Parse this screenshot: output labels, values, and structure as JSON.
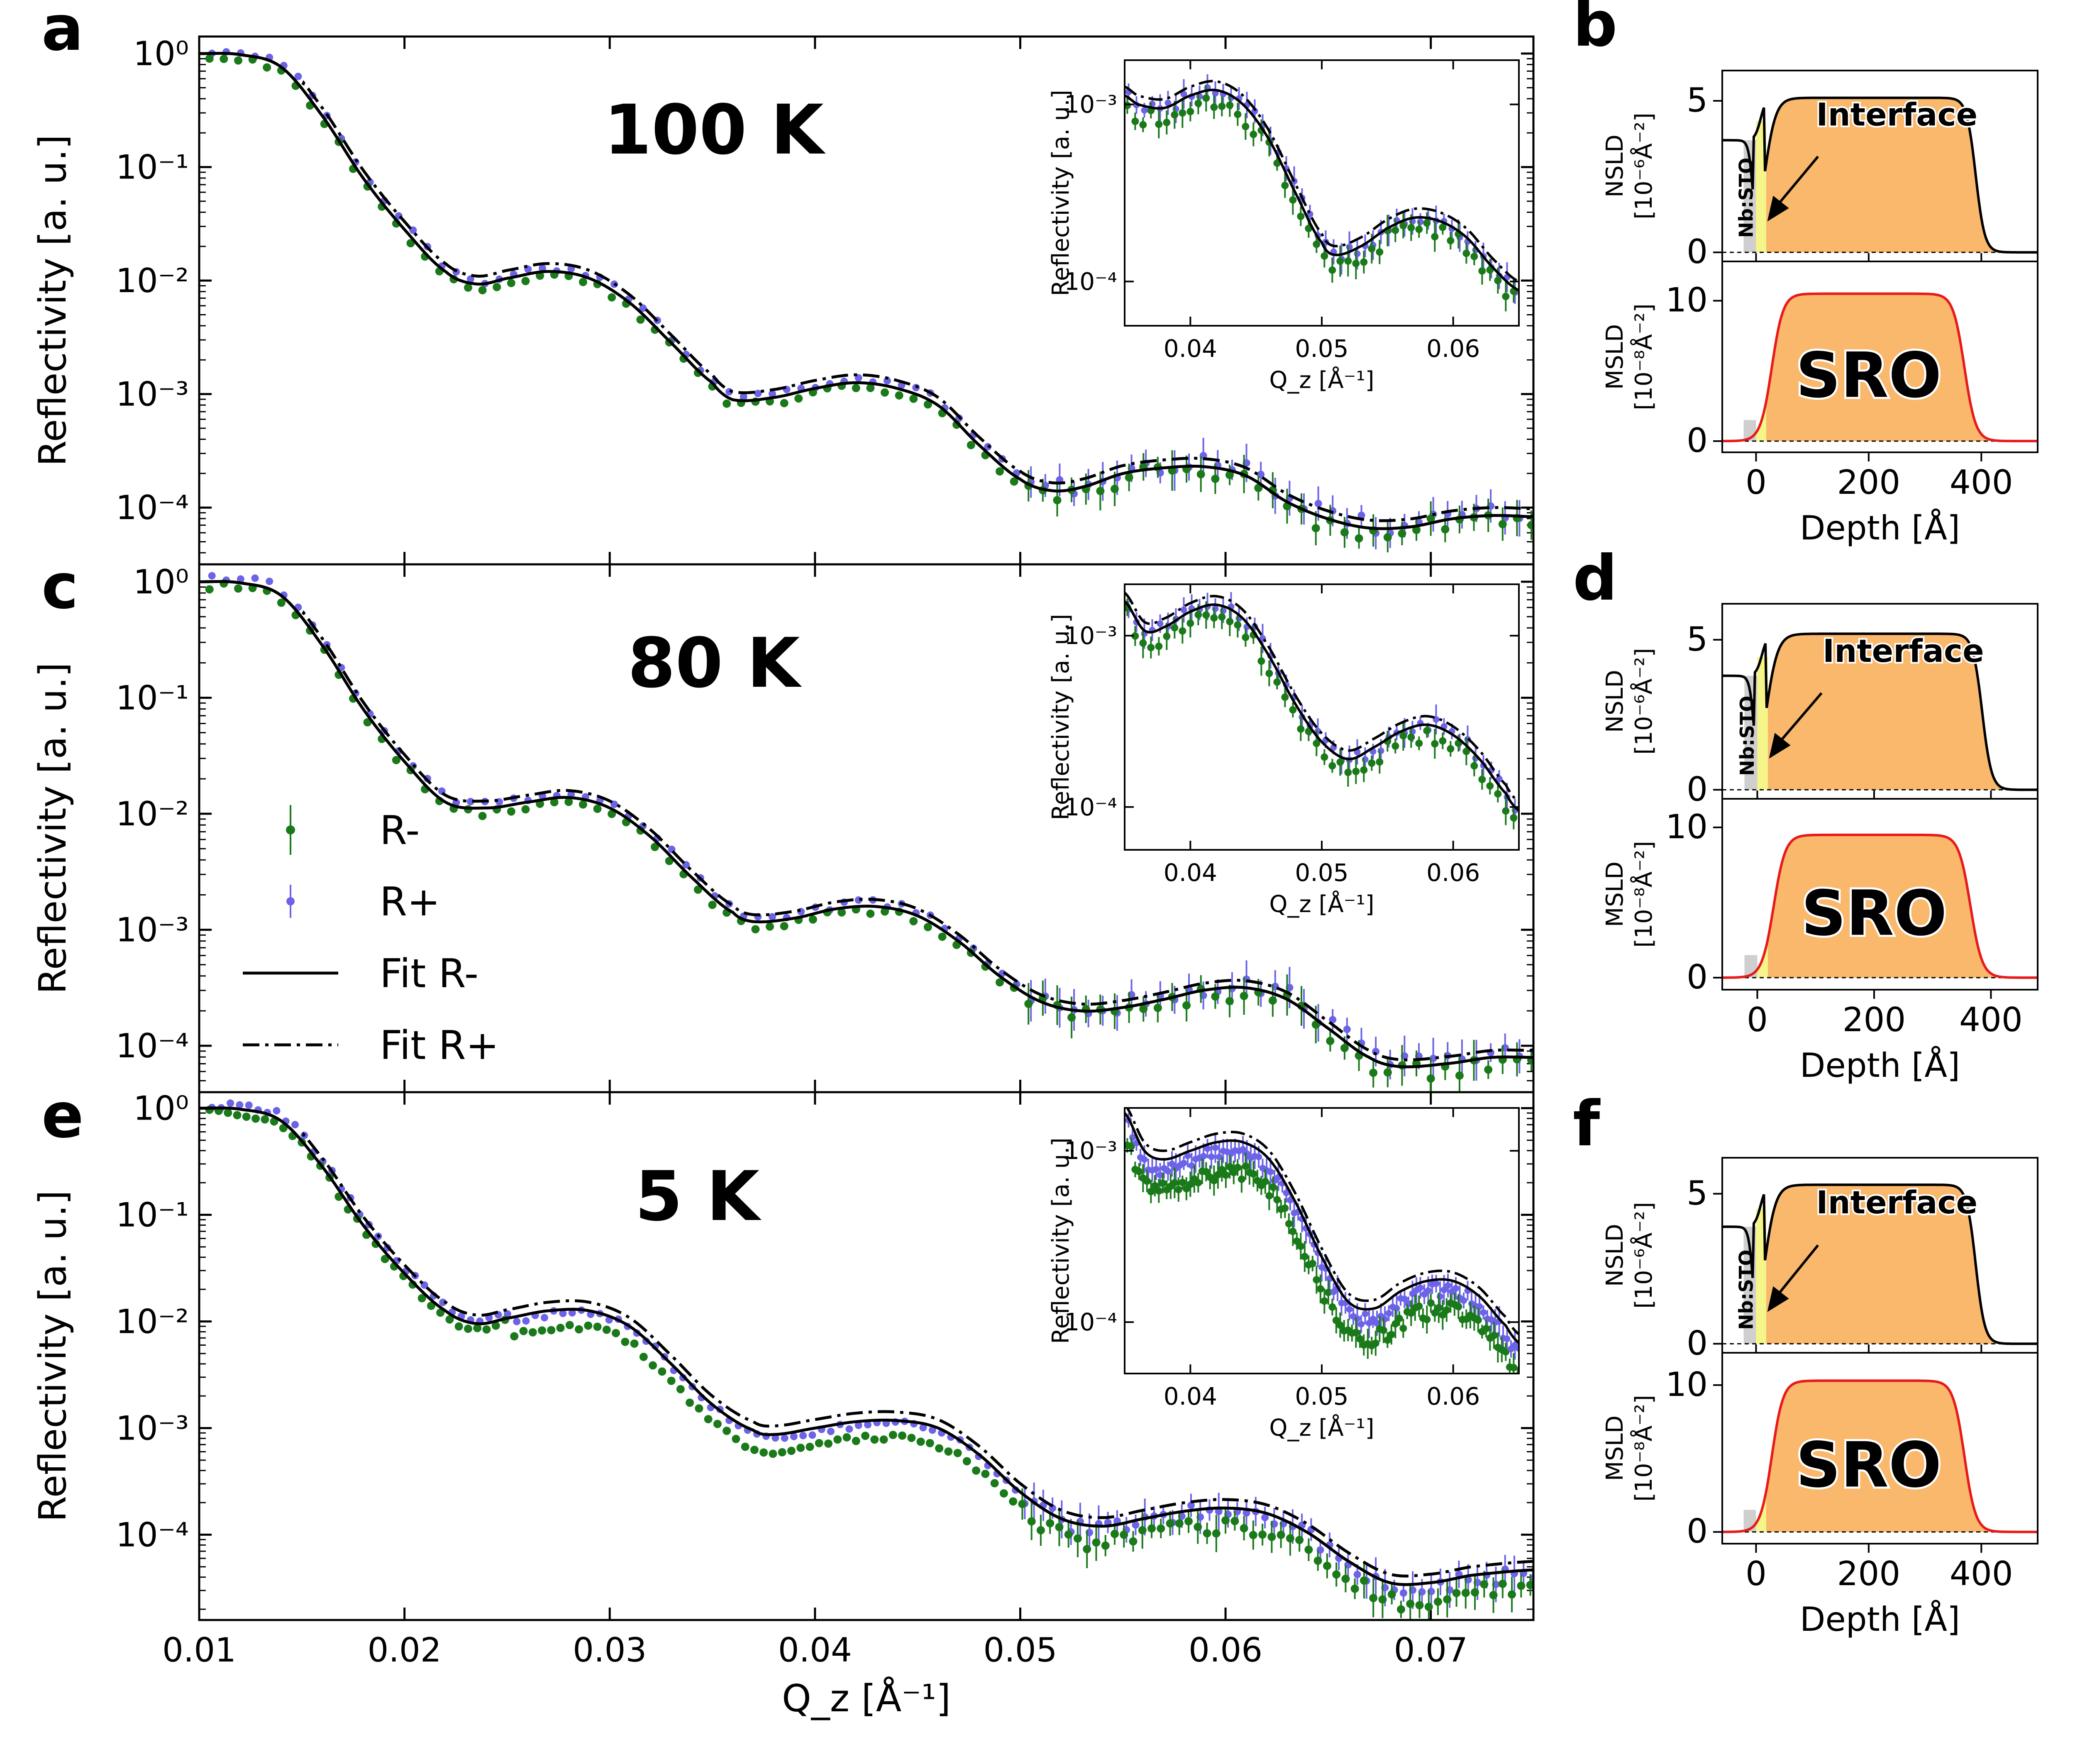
{
  "figure": {
    "colors": {
      "r_minus": "#1a7a1a",
      "r_plus": "#6c63e8",
      "fit": "#000000",
      "nsld_line": "#000000",
      "msld_line": "#e81a1a",
      "sro_fill": "#f9b86b",
      "interface_fill": "#f5f58a",
      "substrate_fill": "#cfcfcf"
    }
  },
  "legend": {
    "entries": [
      {
        "label": "R-",
        "style": "green-errorbar-dot"
      },
      {
        "label": "R+",
        "style": "blue-errorbar-x"
      },
      {
        "label": "Fit R-",
        "style": "solid-black"
      },
      {
        "label": "Fit R+",
        "style": "dashdot-black"
      }
    ]
  },
  "chart_data": [
    {
      "panel": "a",
      "type": "line",
      "temperature": "100 K",
      "xlabel": "Q_z [Å⁻¹]",
      "ylabel": "Reflectivity [a. u.]",
      "xlim": [
        0.01,
        0.075
      ],
      "ylim_log10": [
        -4.5,
        0.15
      ],
      "yscale": "log",
      "yticks": [
        "10⁰",
        "10⁻¹",
        "10⁻²",
        "10⁻³",
        "10⁻⁴"
      ],
      "xticks": [
        "0.01",
        "0.02",
        "0.03",
        "0.04",
        "0.05",
        "0.06",
        "0.07"
      ],
      "fit_knots_log10": [
        [
          0.01,
          0.0
        ],
        [
          0.012,
          -0.01
        ],
        [
          0.014,
          -0.12
        ],
        [
          0.016,
          -0.55
        ],
        [
          0.018,
          -1.1
        ],
        [
          0.02,
          -1.55
        ],
        [
          0.022,
          -1.92
        ],
        [
          0.0235,
          -2.03
        ],
        [
          0.025,
          -1.98
        ],
        [
          0.027,
          -1.92
        ],
        [
          0.029,
          -1.98
        ],
        [
          0.031,
          -2.2
        ],
        [
          0.033,
          -2.55
        ],
        [
          0.035,
          -2.9
        ],
        [
          0.036,
          -3.05
        ],
        [
          0.038,
          -3.03
        ],
        [
          0.04,
          -2.95
        ],
        [
          0.042,
          -2.9
        ],
        [
          0.044,
          -2.95
        ],
        [
          0.046,
          -3.1
        ],
        [
          0.048,
          -3.45
        ],
        [
          0.05,
          -3.75
        ],
        [
          0.0515,
          -3.85
        ],
        [
          0.053,
          -3.82
        ],
        [
          0.055,
          -3.7
        ],
        [
          0.057,
          -3.65
        ],
        [
          0.059,
          -3.64
        ],
        [
          0.061,
          -3.72
        ],
        [
          0.063,
          -3.95
        ],
        [
          0.065,
          -4.1
        ],
        [
          0.067,
          -4.18
        ],
        [
          0.069,
          -4.17
        ],
        [
          0.071,
          -4.1
        ],
        [
          0.073,
          -4.07
        ],
        [
          0.075,
          -4.08
        ]
      ],
      "fit_offset_r_plus": 0.07,
      "inset": {
        "xlim": [
          0.035,
          0.065
        ],
        "ylim_log10": [
          -4.25,
          -2.75
        ],
        "xlabel": "Q_z [Å⁻¹]",
        "ylabel": "Reflectivity [a. u.]",
        "xticks": [
          "0.04",
          "0.05",
          "0.06"
        ],
        "yticks": [
          "10⁻³",
          "10⁻⁴"
        ],
        "fit_knots_log10": [
          [
            0.035,
            -2.95
          ],
          [
            0.036,
            -3.0
          ],
          [
            0.038,
            -3.02
          ],
          [
            0.04,
            -2.95
          ],
          [
            0.042,
            -2.92
          ],
          [
            0.044,
            -3.0
          ],
          [
            0.046,
            -3.2
          ],
          [
            0.048,
            -3.5
          ],
          [
            0.05,
            -3.78
          ],
          [
            0.051,
            -3.85
          ],
          [
            0.053,
            -3.8
          ],
          [
            0.055,
            -3.7
          ],
          [
            0.057,
            -3.64
          ],
          [
            0.059,
            -3.66
          ],
          [
            0.061,
            -3.75
          ],
          [
            0.063,
            -3.92
          ],
          [
            0.065,
            -4.05
          ]
        ]
      }
    },
    {
      "panel": "c",
      "type": "line",
      "temperature": "80 K",
      "xlabel": "Q_z [Å⁻¹]",
      "ylabel": "Reflectivity [a. u.]",
      "xlim": [
        0.01,
        0.075
      ],
      "ylim_log10": [
        -4.4,
        0.15
      ],
      "yscale": "log",
      "yticks": [
        "10⁰",
        "10⁻¹",
        "10⁻²",
        "10⁻³",
        "10⁻⁴"
      ],
      "xticks": [
        "0.01",
        "0.02",
        "0.03",
        "0.04",
        "0.05",
        "0.06",
        "0.07"
      ],
      "fit_knots_log10": [
        [
          0.01,
          0.0
        ],
        [
          0.012,
          -0.01
        ],
        [
          0.014,
          -0.12
        ],
        [
          0.016,
          -0.55
        ],
        [
          0.018,
          -1.1
        ],
        [
          0.02,
          -1.55
        ],
        [
          0.022,
          -1.9
        ],
        [
          0.024,
          -1.95
        ],
        [
          0.026,
          -1.9
        ],
        [
          0.028,
          -1.86
        ],
        [
          0.03,
          -1.95
        ],
        [
          0.032,
          -2.2
        ],
        [
          0.034,
          -2.55
        ],
        [
          0.036,
          -2.85
        ],
        [
          0.037,
          -2.93
        ],
        [
          0.039,
          -2.9
        ],
        [
          0.041,
          -2.82
        ],
        [
          0.043,
          -2.8
        ],
        [
          0.045,
          -2.88
        ],
        [
          0.047,
          -3.1
        ],
        [
          0.049,
          -3.4
        ],
        [
          0.051,
          -3.62
        ],
        [
          0.053,
          -3.7
        ],
        [
          0.055,
          -3.67
        ],
        [
          0.057,
          -3.6
        ],
        [
          0.059,
          -3.52
        ],
        [
          0.061,
          -3.5
        ],
        [
          0.063,
          -3.6
        ],
        [
          0.065,
          -3.85
        ],
        [
          0.067,
          -4.1
        ],
        [
          0.0685,
          -4.18
        ],
        [
          0.071,
          -4.15
        ],
        [
          0.073,
          -4.1
        ],
        [
          0.075,
          -4.1
        ]
      ],
      "fit_offset_r_plus": 0.06,
      "inset": {
        "xlim": [
          0.035,
          0.065
        ],
        "ylim_log10": [
          -4.25,
          -2.7
        ],
        "xlabel": "Q_z [Å⁻¹]",
        "ylabel": "Reflectivity [a. u.]",
        "xticks": [
          "0.04",
          "0.05",
          "0.06"
        ],
        "yticks": [
          "10⁻³",
          "10⁻⁴"
        ],
        "fit_knots_log10": [
          [
            0.035,
            -2.8
          ],
          [
            0.0365,
            -2.97
          ],
          [
            0.038,
            -2.95
          ],
          [
            0.04,
            -2.86
          ],
          [
            0.042,
            -2.82
          ],
          [
            0.044,
            -2.9
          ],
          [
            0.046,
            -3.12
          ],
          [
            0.048,
            -3.4
          ],
          [
            0.05,
            -3.62
          ],
          [
            0.052,
            -3.72
          ],
          [
            0.054,
            -3.65
          ],
          [
            0.056,
            -3.56
          ],
          [
            0.058,
            -3.52
          ],
          [
            0.06,
            -3.58
          ],
          [
            0.062,
            -3.72
          ],
          [
            0.064,
            -3.92
          ],
          [
            0.065,
            -4.02
          ]
        ]
      }
    },
    {
      "panel": "e",
      "type": "line",
      "temperature": "5 K",
      "xlabel": "Q_z [Å⁻¹]",
      "ylabel": "Reflectivity [a. u.]",
      "xlim": [
        0.01,
        0.075
      ],
      "ylim_log10": [
        -4.8,
        0.15
      ],
      "yscale": "log",
      "yticks": [
        "10⁰",
        "10⁻¹",
        "10⁻²",
        "10⁻³",
        "10⁻⁴"
      ],
      "xticks": [
        "0.01",
        "0.02",
        "0.03",
        "0.04",
        "0.05",
        "0.06",
        "0.07"
      ],
      "fit_knots_log10": [
        [
          0.01,
          0.0
        ],
        [
          0.012,
          -0.01
        ],
        [
          0.014,
          -0.12
        ],
        [
          0.016,
          -0.55
        ],
        [
          0.018,
          -1.1
        ],
        [
          0.02,
          -1.55
        ],
        [
          0.022,
          -1.9
        ],
        [
          0.0235,
          -2.02
        ],
        [
          0.025,
          -1.97
        ],
        [
          0.027,
          -1.9
        ],
        [
          0.029,
          -1.9
        ],
        [
          0.031,
          -2.05
        ],
        [
          0.033,
          -2.4
        ],
        [
          0.035,
          -2.78
        ],
        [
          0.037,
          -3.02
        ],
        [
          0.038,
          -3.06
        ],
        [
          0.04,
          -3.0
        ],
        [
          0.042,
          -2.94
        ],
        [
          0.044,
          -2.93
        ],
        [
          0.046,
          -3.0
        ],
        [
          0.048,
          -3.25
        ],
        [
          0.05,
          -3.6
        ],
        [
          0.052,
          -3.85
        ],
        [
          0.054,
          -3.92
        ],
        [
          0.056,
          -3.85
        ],
        [
          0.058,
          -3.78
        ],
        [
          0.06,
          -3.75
        ],
        [
          0.062,
          -3.8
        ],
        [
          0.064,
          -3.98
        ],
        [
          0.066,
          -4.25
        ],
        [
          0.068,
          -4.45
        ],
        [
          0.07,
          -4.45
        ],
        [
          0.072,
          -4.38
        ],
        [
          0.075,
          -4.33
        ]
      ],
      "fit_offset_r_plus": 0.08,
      "inset": {
        "xlim": [
          0.035,
          0.065
        ],
        "ylim_log10": [
          -4.3,
          -2.75
        ],
        "xlabel": "Q_z [Å⁻¹]",
        "ylabel": "Reflectivity [a. u.]",
        "xticks": [
          "0.04",
          "0.05",
          "0.06"
        ],
        "yticks": [
          "10⁻³",
          "10⁻⁴"
        ],
        "fit_knots_log10": [
          [
            0.035,
            -2.78
          ],
          [
            0.0365,
            -3.0
          ],
          [
            0.038,
            -3.05
          ],
          [
            0.04,
            -3.0
          ],
          [
            0.042,
            -2.95
          ],
          [
            0.044,
            -2.95
          ],
          [
            0.046,
            -3.05
          ],
          [
            0.048,
            -3.3
          ],
          [
            0.05,
            -3.62
          ],
          [
            0.052,
            -3.88
          ],
          [
            0.054,
            -3.92
          ],
          [
            0.056,
            -3.82
          ],
          [
            0.058,
            -3.76
          ],
          [
            0.06,
            -3.76
          ],
          [
            0.062,
            -3.85
          ],
          [
            0.064,
            -4.02
          ],
          [
            0.065,
            -4.12
          ]
        ]
      }
    }
  ],
  "sld_panels": [
    {
      "panel": "b",
      "nsld_label": "NSLD",
      "nsld_unit": "[10⁻⁶Å⁻²]",
      "msld_label": "MSLD",
      "msld_unit": "[10⁻⁸Å⁻²]",
      "xlabel": "Depth [Å]",
      "xticks": [
        "0",
        "200",
        "400"
      ],
      "nsld_yticks": [
        "5",
        "0"
      ],
      "msld_yticks": [
        "10",
        "0"
      ],
      "xlim": [
        -60,
        500
      ],
      "nsld_max": 5.1,
      "nsld_substrate": 3.7,
      "nsld_ylim": [
        -0.3,
        6.0
      ],
      "msld_max": 10.5,
      "msld_ylim": [
        -0.8,
        12.8
      ],
      "sro_end": 390,
      "interface_label": "Interface",
      "substrate_label": "Nb:STO",
      "film_label": "SRO"
    },
    {
      "panel": "d",
      "nsld_label": "NSLD",
      "nsld_unit": "[10⁻⁶Å⁻²]",
      "msld_label": "MSLD",
      "msld_unit": "[10⁻⁸Å⁻²]",
      "xlabel": "Depth [Å]",
      "xticks": [
        "0",
        "200",
        "400"
      ],
      "nsld_yticks": [
        "5",
        "0"
      ],
      "msld_yticks": [
        "10",
        "0"
      ],
      "xlim": [
        -60,
        480
      ],
      "nsld_max": 5.2,
      "nsld_substrate": 3.8,
      "nsld_ylim": [
        -0.3,
        6.2
      ],
      "msld_max": 9.5,
      "msld_ylim": [
        -0.8,
        11.9
      ],
      "sro_end": 385,
      "interface_label": "Interface",
      "substrate_label": "Nb:STO",
      "film_label": "SRO"
    },
    {
      "panel": "f",
      "nsld_label": "NSLD",
      "nsld_unit": "[10⁻⁶Å⁻²]",
      "msld_label": "MSLD",
      "msld_unit": "[10⁻⁸Å⁻²]",
      "xlabel": "Depth [Å]",
      "xticks": [
        "0",
        "200",
        "400"
      ],
      "nsld_yticks": [
        "5",
        "0"
      ],
      "msld_yticks": [
        "10",
        "0"
      ],
      "xlim": [
        -60,
        500
      ],
      "nsld_max": 5.3,
      "nsld_substrate": 3.9,
      "nsld_ylim": [
        -0.3,
        6.2
      ],
      "msld_max": 10.3,
      "msld_ylim": [
        -0.8,
        12.2
      ],
      "sro_end": 390,
      "interface_label": "Interface",
      "substrate_label": "Nb:STO",
      "film_label": "SRO"
    }
  ]
}
